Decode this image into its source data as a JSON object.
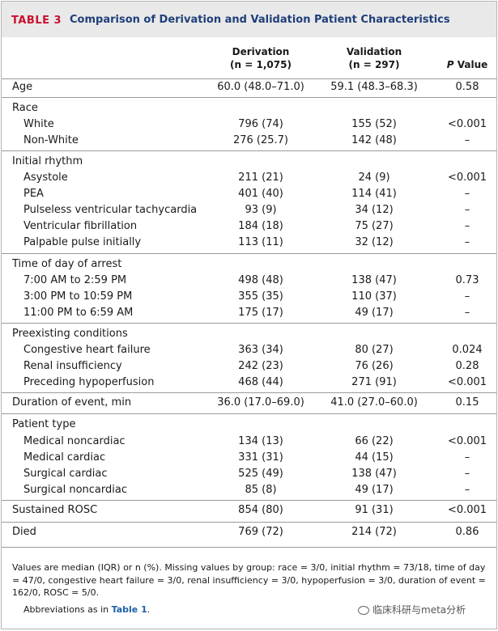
{
  "title": {
    "label": "TABLE 3",
    "text": "Comparison of Derivation and Validation Patient Characteristics"
  },
  "header": {
    "derivation": "Derivation",
    "derivation_n": "(n = 1,075)",
    "validation": "Validation",
    "validation_n": "(n = 297)",
    "p_italic": "P",
    "p_rest": " Value"
  },
  "rows": [
    {
      "label": "Age",
      "der": "60.0 (48.0–71.0)",
      "val": "59.1 (48.3–68.3)",
      "p": "0.58"
    },
    {
      "label": "Race",
      "der": "",
      "val": "",
      "p": ""
    },
    {
      "label": "White",
      "der": "796 (74)",
      "val": "155 (52)",
      "p": "<0.001"
    },
    {
      "label": "Non-White",
      "der": "276 (25.7)",
      "val": "142 (48)",
      "p": "–"
    },
    {
      "label": "Initial rhythm",
      "der": "",
      "val": "",
      "p": ""
    },
    {
      "label": "Asystole",
      "der": "211 (21)",
      "val": "24 (9)",
      "p": "<0.001"
    },
    {
      "label": "PEA",
      "der": "401 (40)",
      "val": "114 (41)",
      "p": "–"
    },
    {
      "label": "Pulseless ventricular tachycardia",
      "der": "93 (9)",
      "val": "34 (12)",
      "p": "–"
    },
    {
      "label": "Ventricular fibrillation",
      "der": "184 (18)",
      "val": "75 (27)",
      "p": "–"
    },
    {
      "label": "Palpable pulse initially",
      "der": "113 (11)",
      "val": "32 (12)",
      "p": "–"
    },
    {
      "label": "Time of day of arrest",
      "der": "",
      "val": "",
      "p": ""
    },
    {
      "label": "7:00 AM to 2:59 PM",
      "der": "498 (48)",
      "val": "138 (47)",
      "p": "0.73"
    },
    {
      "label": "3:00 PM to 10:59 PM",
      "der": "355 (35)",
      "val": "110 (37)",
      "p": "–"
    },
    {
      "label": "11:00 PM to 6:59 AM",
      "der": "175 (17)",
      "val": "49 (17)",
      "p": "–"
    },
    {
      "label": "Preexisting conditions",
      "der": "",
      "val": "",
      "p": ""
    },
    {
      "label": "Congestive heart failure",
      "der": "363 (34)",
      "val": "80 (27)",
      "p": "0.024"
    },
    {
      "label": "Renal insufficiency",
      "der": "242 (23)",
      "val": "76 (26)",
      "p": "0.28"
    },
    {
      "label": "Preceding hypoperfusion",
      "der": "468 (44)",
      "val": "271 (91)",
      "p": "<0.001"
    },
    {
      "label": "Duration of event, min",
      "der": "36.0 (17.0–69.0)",
      "val": "41.0 (27.0–60.0)",
      "p": "0.15"
    },
    {
      "label": "Patient type",
      "der": "",
      "val": "",
      "p": ""
    },
    {
      "label": "Medical noncardiac",
      "der": "134 (13)",
      "val": "66 (22)",
      "p": "<0.001"
    },
    {
      "label": "Medical cardiac",
      "der": "331 (31)",
      "val": "44 (15)",
      "p": "–"
    },
    {
      "label": "Surgical cardiac",
      "der": "525 (49)",
      "val": "138 (47)",
      "p": "–"
    },
    {
      "label": "Surgical noncardiac",
      "der": "85 (8)",
      "val": "49 (17)",
      "p": "–"
    },
    {
      "label": "Sustained ROSC",
      "der": "854 (80)",
      "val": "91 (31)",
      "p": "<0.001"
    },
    {
      "label": "Died",
      "der": "769 (72)",
      "val": "214 (72)",
      "p": "0.86"
    }
  ],
  "footnote": "Values are median (IQR) or n (%). Missing values by group: race = 3/0, initial rhythm = 73/18, time of day = 47/0, congestive heart failure = 3/0, renal insufficiency = 3/0, hypoperfusion = 3/0, duration of event = 162/0, ROSC = 5/0.",
  "abbreviations": {
    "text": "Abbreviations as in ",
    "link": "Table 1",
    "end": "."
  },
  "watermark": "临床科研与meta分析"
}
